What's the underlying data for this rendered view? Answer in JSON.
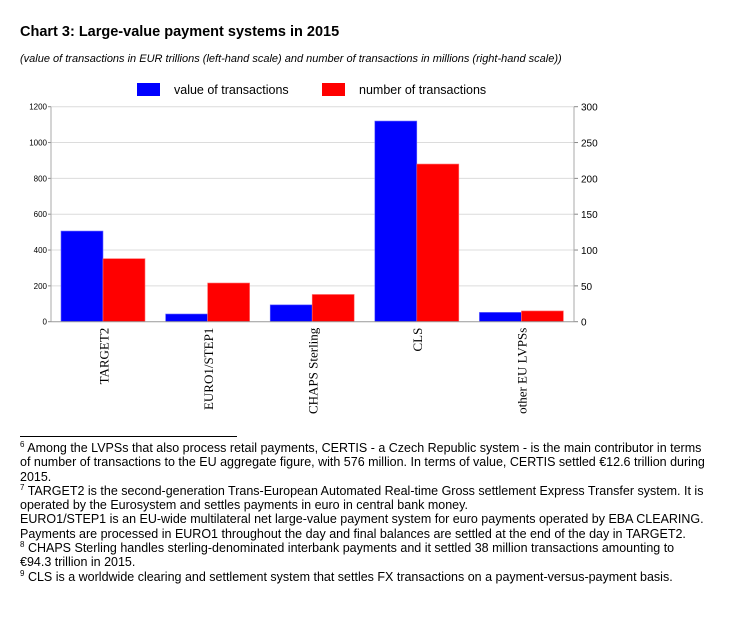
{
  "title": "Chart 3: Large-value payment systems in 2015",
  "subtitle": "(value of transactions in EUR trillions (left-hand scale) and number of transactions in millions (right-hand scale))",
  "chart_data": {
    "type": "bar",
    "categories": [
      "TARGET2",
      "EURO1/STEP1",
      "CHAPS Sterling",
      "CLS",
      "other EU LVPSs"
    ],
    "series": [
      {
        "name": "value of transactions",
        "axis": "left",
        "color": "#0000ff",
        "values": [
          506,
          43,
          94,
          1120,
          52
        ]
      },
      {
        "name": "number of transactions",
        "axis": "right",
        "color": "#ff0000",
        "values": [
          88,
          54,
          38,
          220,
          15
        ]
      }
    ],
    "left_axis": {
      "ylim": [
        0,
        1200
      ],
      "ticks": [
        "0",
        "200",
        "400",
        "600",
        "800",
        "1000",
        "1200"
      ]
    },
    "right_axis": {
      "ylim": [
        0,
        300
      ],
      "ticks": [
        "0",
        "50",
        "100",
        "150",
        "200",
        "250",
        "300"
      ]
    },
    "grid": true,
    "legend_position": "top"
  },
  "footnotes": [
    {
      "mark": "6",
      "lines": [
        "Among the LVPSs that also process retail payments, CERTIS - a Czech Republic system - is the main contributor in terms",
        "of number of transactions to the EU aggregate figure, with 576 million. In terms of value, CERTIS settled €12.6 trillion during",
        "2015."
      ]
    },
    {
      "mark": "7",
      "lines": [
        "TARGET2 is the second-generation Trans-European Automated Real-time Gross settlement Express Transfer system. It is",
        "operated by the Eurosystem and settles payments in euro in central bank money.",
        "EURO1/STEP1 is an EU-wide multilateral net large-value payment system for euro payments operated by EBA CLEARING.",
        "Payments are processed in EURO1 throughout the day and final balances are settled at the end of the day in TARGET2."
      ]
    },
    {
      "mark": "8",
      "lines": [
        "CHAPS Sterling handles sterling-denominated interbank payments and it settled 38 million transactions amounting to",
        "€94.3 trillion in 2015."
      ]
    },
    {
      "mark": "9",
      "lines": [
        "CLS is a worldwide clearing and settlement system that settles FX transactions on a payment-versus-payment basis."
      ]
    }
  ]
}
